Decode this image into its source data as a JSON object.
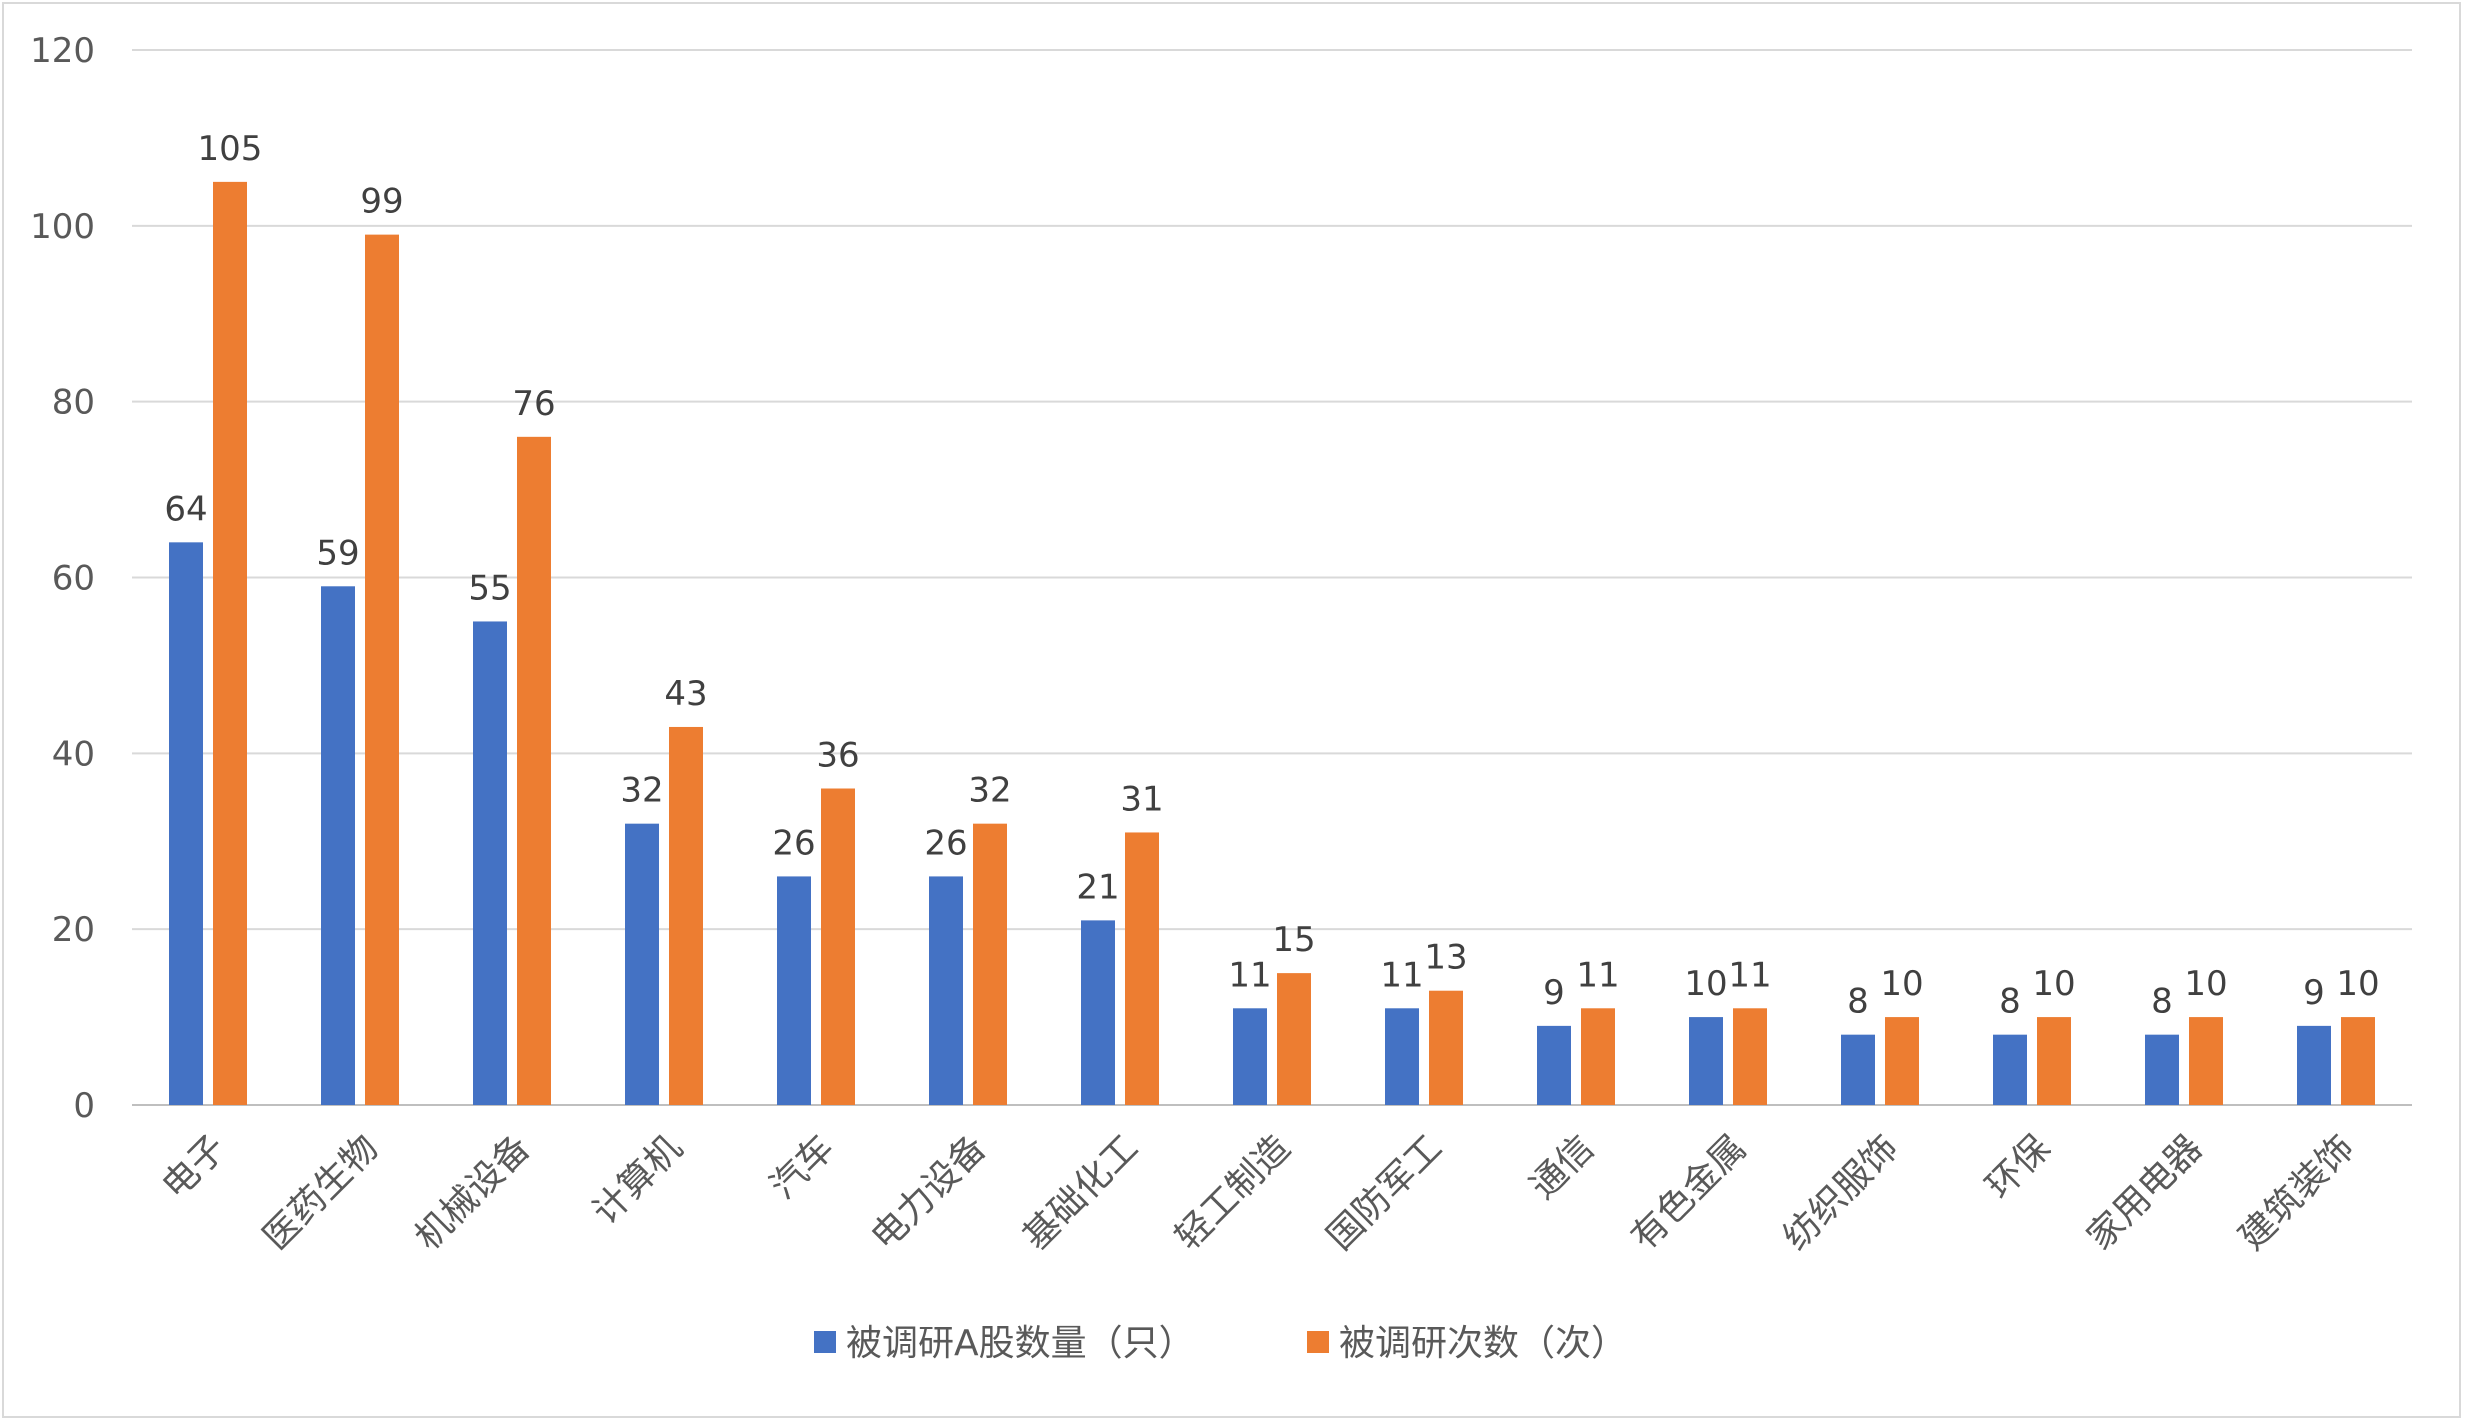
{
  "chart_data": {
    "type": "bar",
    "title": "",
    "xlabel": "",
    "ylabel": "",
    "ylim": [
      0,
      120
    ],
    "yticks": [
      0,
      20,
      40,
      60,
      80,
      100,
      120
    ],
    "grid": true,
    "legend_position": "bottom",
    "categories": [
      "电子",
      "医药生物",
      "机械设备",
      "计算机",
      "汽车",
      "电力设备",
      "基础化工",
      "轻工制造",
      "国防军工",
      "通信",
      "有色金属",
      "纺织服饰",
      "环保",
      "家用电器",
      "建筑装饰"
    ],
    "series": [
      {
        "name": "被调研A股数量（只）",
        "color": "#4472C4",
        "values": [
          64,
          59,
          55,
          32,
          26,
          26,
          21,
          11,
          11,
          9,
          10,
          8,
          8,
          8,
          9
        ]
      },
      {
        "name": "被调研次数（次）",
        "color": "#ED7D31",
        "values": [
          105,
          99,
          76,
          43,
          36,
          32,
          31,
          15,
          13,
          11,
          11,
          10,
          10,
          10,
          10
        ]
      }
    ]
  }
}
